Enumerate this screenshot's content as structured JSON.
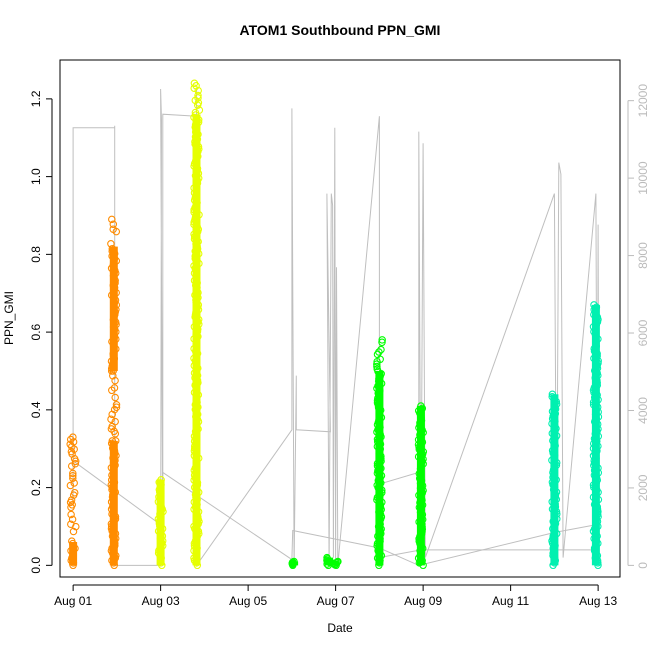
{
  "chart_data": {
    "type": "scatter",
    "title": "ATOM1 Southbound PPN_GMI",
    "xlabel": "Date",
    "ylabel": "PPN_GMI",
    "x_ticks": [
      "Aug 01",
      "Aug 03",
      "Aug 05",
      "Aug 07",
      "Aug 09",
      "Aug 11",
      "Aug 13"
    ],
    "x_tick_values": [
      0,
      2,
      4,
      6,
      8,
      10,
      12
    ],
    "xlim": [
      -0.3,
      12.5
    ],
    "y_ticks": [
      "0.0",
      "0.2",
      "0.4",
      "0.6",
      "0.8",
      "1.0",
      "1.2"
    ],
    "y_tick_values": [
      0,
      0.2,
      0.4,
      0.6,
      0.8,
      1.0,
      1.2
    ],
    "ylim": [
      -0.03,
      1.3
    ],
    "y2_ticks": [
      "0",
      "2000",
      "4000",
      "6000",
      "8000",
      "10000",
      "12000"
    ],
    "y2_tick_values": [
      0,
      2000,
      4000,
      6000,
      8000,
      10000,
      12000
    ],
    "y2lim": [
      -300,
      13050
    ],
    "y2_color": "#bbbbbb",
    "line_color": "#bfbfbf",
    "grid": false,
    "legend": "none",
    "series": [
      {
        "color": "#ff8c00",
        "segments": [
          {
            "x": 0.0,
            "ymin": 0.0,
            "ymax": 0.33,
            "dense": 0.06
          },
          {
            "x": 0.93,
            "ymin": 0.0,
            "ymax": 0.32,
            "dense": 0.32
          },
          {
            "x": 0.93,
            "ymin": 0.5,
            "ymax": 0.89,
            "dense": 0.82
          },
          {
            "x": 0.93,
            "ymin": 0.32,
            "ymax": 0.5,
            "dense": 0.0
          }
        ]
      },
      {
        "color": "#e6ff00",
        "segments": [
          {
            "x": 2.0,
            "ymin": 0.0,
            "ymax": 0.22,
            "dense": 0.22
          },
          {
            "x": 2.82,
            "ymin": 0.0,
            "ymax": 1.24,
            "dense": 1.16
          }
        ]
      },
      {
        "color": "#00ff00",
        "segments": [
          {
            "x": 5.05,
            "ymin": 0.0,
            "ymax": 0.01,
            "dense": 0.01
          },
          {
            "x": 5.85,
            "ymin": 0.0,
            "ymax": 0.02,
            "dense": 0.02
          },
          {
            "x": 6.0,
            "ymin": 0.0,
            "ymax": 0.01,
            "dense": 0.01
          },
          {
            "x": 7.0,
            "ymin": 0.0,
            "ymax": 0.58,
            "dense": 0.5
          },
          {
            "x": 7.95,
            "ymin": 0.0,
            "ymax": 0.41,
            "dense": 0.41
          }
        ]
      },
      {
        "color": "#00f0b0",
        "segments": [
          {
            "x": 11.0,
            "ymin": 0.0,
            "ymax": 0.44,
            "dense": 0.44
          },
          {
            "x": 11.95,
            "ymin": 0.0,
            "ymax": 0.67,
            "dense": 0.67
          }
        ]
      }
    ],
    "secondary_line": [
      [
        0.0,
        1600
      ],
      [
        0.0,
        11300
      ],
      [
        0.95,
        11300
      ],
      [
        0.95,
        0
      ],
      [
        0.95,
        11350
      ],
      [
        0.95,
        0
      ],
      [
        2.0,
        0
      ],
      [
        2.02,
        11500
      ],
      [
        2.0,
        12300
      ],
      [
        2.05,
        200
      ],
      [
        2.05,
        11650
      ],
      [
        2.82,
        11600
      ],
      [
        2.82,
        12300
      ],
      [
        2.82,
        0
      ],
      [
        5.0,
        3500
      ],
      [
        5.0,
        11800
      ],
      [
        5.05,
        0
      ],
      [
        5.1,
        4900
      ],
      [
        5.1,
        3500
      ],
      [
        5.88,
        3450
      ],
      [
        5.8,
        9600
      ],
      [
        5.85,
        0
      ],
      [
        5.9,
        9600
      ],
      [
        5.93,
        9300
      ],
      [
        5.95,
        200
      ],
      [
        5.98,
        11300
      ],
      [
        6.0,
        0
      ],
      [
        6.02,
        7700
      ],
      [
        6.05,
        0
      ],
      [
        7.0,
        11600
      ],
      [
        7.0,
        2100
      ],
      [
        7.9,
        2400
      ],
      [
        7.9,
        11200
      ],
      [
        7.95,
        0
      ],
      [
        8.0,
        10900
      ],
      [
        8.05,
        200
      ],
      [
        11.0,
        9600
      ],
      [
        11.05,
        200
      ],
      [
        11.1,
        10400
      ],
      [
        11.15,
        10100
      ],
      [
        11.2,
        200
      ],
      [
        11.95,
        9600
      ],
      [
        11.98,
        300
      ],
      [
        12.0,
        8800
      ],
      [
        12.02,
        600
      ]
    ],
    "connector_line": [
      [
        0.0,
        2700
      ],
      [
        2.0,
        1050
      ],
      [
        2.05,
        2400
      ],
      [
        5.0,
        150
      ],
      [
        5.02,
        900
      ],
      [
        7.0,
        450
      ],
      [
        7.9,
        0
      ],
      [
        11.0,
        850
      ],
      [
        11.95,
        1050
      ]
    ],
    "extra_connector": [
      [
        7.0,
        200
      ],
      [
        7.95,
        400
      ],
      [
        11.95,
        400
      ]
    ]
  }
}
